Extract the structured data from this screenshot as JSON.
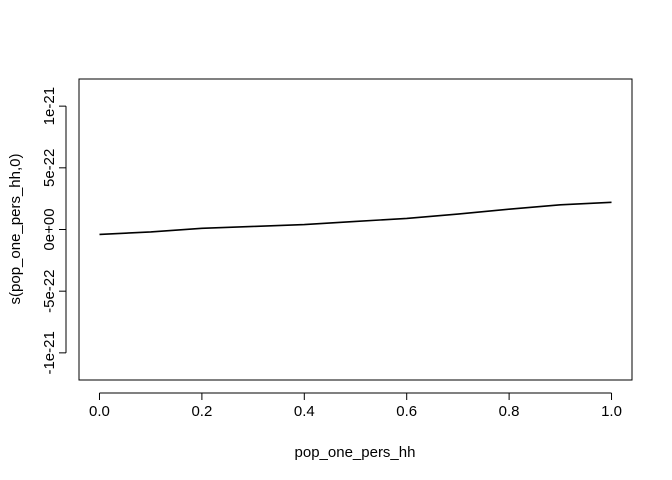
{
  "chart_data": {
    "type": "line",
    "title": "",
    "xlabel": "pop_one_pers_hh",
    "ylabel": "s(pop_one_pers_hh,0)",
    "xlim": [
      -0.04,
      1.04
    ],
    "ylim": [
      -1.22e-21,
      1.22e-21
    ],
    "x_ticks": [
      0.0,
      0.2,
      0.4,
      0.6,
      0.8,
      1.0
    ],
    "x_tick_labels": [
      "0.0",
      "0.2",
      "0.4",
      "0.6",
      "0.8",
      "1.0"
    ],
    "y_ticks": [
      -1e-21,
      -5e-22,
      0,
      5e-22,
      1e-21
    ],
    "y_tick_labels": [
      "-1e-21",
      "-5e-22",
      "0e+00",
      "5e-22",
      "1e-21"
    ],
    "grid": false,
    "series": [
      {
        "x": [
          0.0,
          0.1,
          0.2,
          0.3,
          0.4,
          0.5,
          0.6,
          0.7,
          0.8,
          0.9,
          1.0
        ],
        "values": [
          -4e-23,
          -2e-23,
          1e-23,
          2.5e-23,
          4e-23,
          6.5e-23,
          9e-23,
          1.25e-22,
          1.65e-22,
          2e-22,
          2.2e-22
        ]
      }
    ]
  }
}
